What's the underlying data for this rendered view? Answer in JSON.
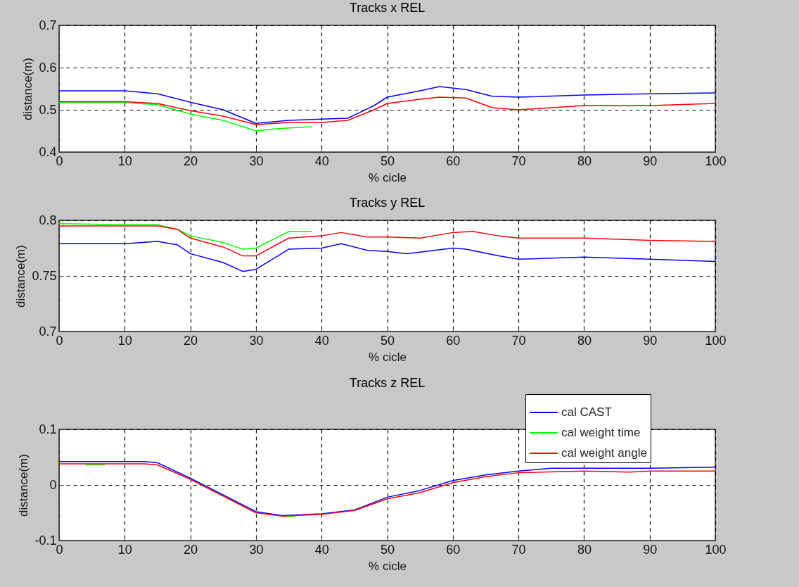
{
  "chart_data": [
    {
      "type": "line",
      "title": "Tracks x REL",
      "xlabel": "% cicle",
      "ylabel": "distance(m)",
      "xlim": [
        0,
        100
      ],
      "xticks": [
        0,
        10,
        20,
        30,
        40,
        50,
        60,
        70,
        80,
        90,
        100
      ],
      "ylim": [
        0.4,
        0.7
      ],
      "yticks": [
        0.4,
        0.5,
        0.6,
        0.7
      ],
      "grid": true,
      "legend": false,
      "series": [
        {
          "color": "#0000ff",
          "x": [
            0,
            10,
            15,
            20,
            25,
            30,
            35,
            40,
            44,
            48,
            50,
            55,
            58,
            62,
            66,
            70,
            80,
            90,
            100
          ],
          "values": [
            0.545,
            0.545,
            0.538,
            0.518,
            0.5,
            0.468,
            0.475,
            0.478,
            0.48,
            0.51,
            0.53,
            0.545,
            0.555,
            0.548,
            0.532,
            0.53,
            0.535,
            0.538,
            0.54
          ]
        },
        {
          "color": "#00ff00",
          "x": [
            0,
            10,
            15,
            20,
            25,
            30,
            33,
            38.5
          ],
          "values": [
            0.517,
            0.517,
            0.512,
            0.49,
            0.475,
            0.45,
            0.455,
            0.46
          ]
        },
        {
          "color": "#ff0000",
          "x": [
            0,
            10,
            15,
            20,
            25,
            30,
            35,
            40,
            44,
            48,
            50,
            55,
            58,
            62,
            66,
            70,
            80,
            90,
            100
          ],
          "values": [
            0.519,
            0.519,
            0.515,
            0.498,
            0.485,
            0.465,
            0.47,
            0.47,
            0.475,
            0.5,
            0.515,
            0.525,
            0.53,
            0.528,
            0.505,
            0.5,
            0.51,
            0.51,
            0.515
          ]
        }
      ]
    },
    {
      "type": "line",
      "title": "Tracks y REL",
      "xlabel": "% cicle",
      "ylabel": "distance(m)",
      "xlim": [
        0,
        100
      ],
      "xticks": [
        0,
        10,
        20,
        30,
        40,
        50,
        60,
        70,
        80,
        90,
        100
      ],
      "ylim": [
        0.7,
        0.8
      ],
      "yticks": [
        0.7,
        0.75,
        0.8
      ],
      "grid": true,
      "legend": false,
      "series": [
        {
          "color": "#0000ff",
          "x": [
            0,
            10,
            15,
            18,
            20,
            25,
            28,
            30,
            35,
            40,
            43,
            47,
            50,
            53,
            60,
            62,
            67,
            70,
            80,
            90,
            100
          ],
          "values": [
            0.779,
            0.779,
            0.781,
            0.778,
            0.77,
            0.762,
            0.754,
            0.756,
            0.774,
            0.775,
            0.779,
            0.773,
            0.772,
            0.77,
            0.775,
            0.774,
            0.768,
            0.765,
            0.767,
            0.765,
            0.763
          ]
        },
        {
          "color": "#00ff00",
          "x": [
            0,
            10,
            15,
            18,
            20,
            25,
            28,
            30,
            35,
            38.5
          ],
          "values": [
            0.797,
            0.796,
            0.796,
            0.792,
            0.786,
            0.78,
            0.774,
            0.775,
            0.79,
            0.79
          ]
        },
        {
          "color": "#ff0000",
          "x": [
            0,
            10,
            15,
            18,
            20,
            25,
            28,
            30,
            35,
            40,
            43,
            47,
            50,
            55,
            60,
            63,
            67,
            70,
            80,
            90,
            100
          ],
          "values": [
            0.795,
            0.795,
            0.795,
            0.792,
            0.784,
            0.776,
            0.768,
            0.768,
            0.784,
            0.786,
            0.789,
            0.785,
            0.785,
            0.784,
            0.789,
            0.79,
            0.786,
            0.784,
            0.784,
            0.782,
            0.781
          ]
        }
      ]
    },
    {
      "type": "line",
      "title": "Tracks z REL",
      "xlabel": "% cicle",
      "ylabel": "distance(m)",
      "xlim": [
        0,
        100
      ],
      "xticks": [
        0,
        10,
        20,
        30,
        40,
        50,
        60,
        70,
        80,
        90,
        100
      ],
      "ylim": [
        -0.1,
        0.1
      ],
      "yticks": [
        -0.1,
        0,
        0.1
      ],
      "grid": true,
      "legend": "top right",
      "series": [
        {
          "name": "cal CAST",
          "color": "#0000ff",
          "x": [
            0,
            13,
            15,
            20,
            25,
            30,
            34,
            40,
            45,
            50,
            55,
            60,
            65,
            70,
            75,
            80,
            90,
            100
          ],
          "values": [
            0.042,
            0.042,
            0.04,
            0.012,
            -0.018,
            -0.048,
            -0.055,
            -0.052,
            -0.045,
            -0.022,
            -0.01,
            0.008,
            0.018,
            0.025,
            0.03,
            0.03,
            0.03,
            0.032
          ]
        },
        {
          "name": "cal weight time",
          "color": "#00ff00",
          "x": [
            4,
            7,
            20,
            34,
            36
          ],
          "values": [
            0.036,
            0.036,
            null,
            -0.057,
            -0.057
          ]
        },
        {
          "name": "cal weight angle",
          "color": "#ff0000",
          "x": [
            0,
            13,
            15,
            20,
            25,
            30,
            34,
            40,
            45,
            50,
            55,
            60,
            65,
            70,
            80,
            87,
            90,
            100
          ],
          "values": [
            0.038,
            0.038,
            0.036,
            0.01,
            -0.02,
            -0.05,
            -0.056,
            -0.053,
            -0.046,
            -0.025,
            -0.014,
            0.004,
            0.015,
            0.022,
            0.025,
            0.023,
            0.025,
            0.025
          ]
        }
      ]
    }
  ]
}
